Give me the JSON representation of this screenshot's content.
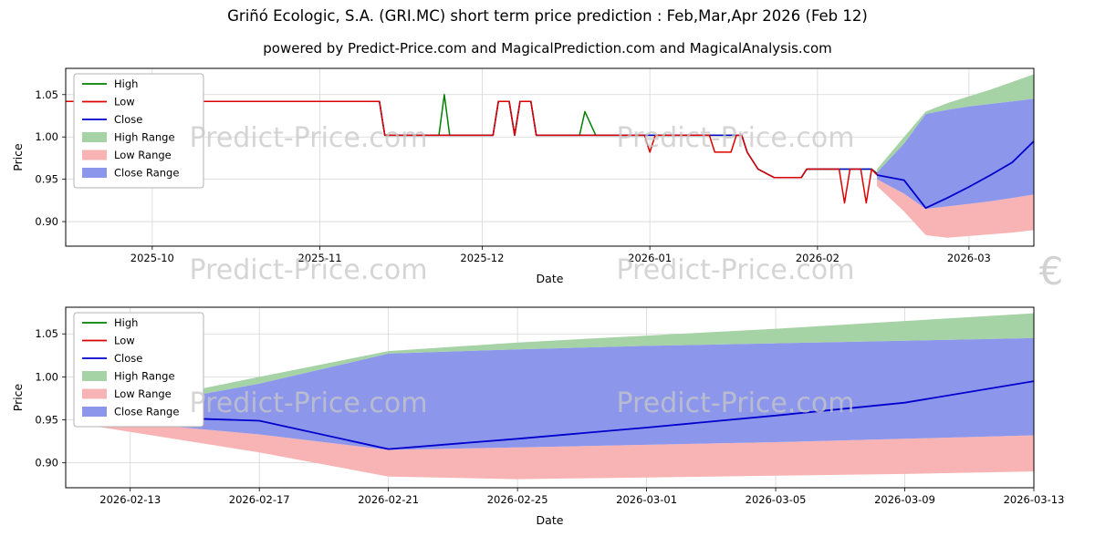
{
  "title": "Griñó Ecologic, S.A. (GRI.MC) short term price prediction : Feb,Mar,Apr 2026 (Feb 12)",
  "subtitle": "powered by Predict-Price.com and MagicalPrediction.com and MagicalAnalysis.com",
  "watermark": {
    "text": "Predict-Price.com",
    "currency_symbol": "€"
  },
  "chart_data": {
    "type": "line",
    "colors": {
      "high": "#008000",
      "low": "#dd0000",
      "close": "#0000cd",
      "high_range": "#a6d3a6",
      "low_range": "#f8b4b4",
      "close_range": "#8c96eb",
      "grid": "#d6d6d6",
      "watermark": "#c8c8c8"
    },
    "legend": [
      {
        "label": "High",
        "swatch": "line",
        "color": "high"
      },
      {
        "label": "Low",
        "swatch": "line",
        "color": "low"
      },
      {
        "label": "Close",
        "swatch": "line",
        "color": "close"
      },
      {
        "label": "High Range",
        "swatch": "patch",
        "color": "high_range"
      },
      {
        "label": "Low Range",
        "swatch": "patch",
        "color": "low_range"
      },
      {
        "label": "Close Range",
        "swatch": "patch",
        "color": "close_range"
      }
    ],
    "history": {
      "dates": [
        "2025-09-15",
        "2025-11-12",
        "2025-11-13",
        "2025-11-23",
        "2025-11-24",
        "2025-11-25",
        "2025-12-03",
        "2025-12-04",
        "2025-12-06",
        "2025-12-07",
        "2025-12-08",
        "2025-12-10",
        "2025-12-11",
        "2025-12-19",
        "2025-12-20",
        "2025-12-22",
        "2025-12-31",
        "2026-01-01",
        "2026-01-02",
        "2026-01-12",
        "2026-01-13",
        "2026-01-16",
        "2026-01-17",
        "2026-01-18",
        "2026-01-19",
        "2026-01-21",
        "2026-01-24",
        "2026-01-29",
        "2026-01-30",
        "2026-02-05",
        "2026-02-06",
        "2026-02-07",
        "2026-02-09",
        "2026-02-10",
        "2026-02-11",
        "2026-02-12"
      ],
      "high": [
        1.042,
        1.042,
        1.002,
        1.002,
        1.05,
        1.002,
        1.002,
        1.042,
        1.042,
        1.002,
        1.042,
        1.042,
        1.002,
        1.002,
        1.03,
        1.002,
        1.002,
        1.002,
        1.002,
        1.002,
        1.002,
        1.002,
        1.002,
        1.002,
        0.982,
        0.962,
        0.952,
        0.952,
        0.962,
        0.962,
        0.962,
        0.962,
        0.962,
        0.962,
        0.962,
        0.957
      ],
      "low": [
        1.042,
        1.042,
        1.002,
        1.002,
        1.002,
        1.002,
        1.002,
        1.042,
        1.042,
        1.002,
        1.042,
        1.042,
        1.002,
        1.002,
        1.002,
        1.002,
        1.002,
        0.982,
        1.002,
        1.002,
        0.982,
        0.982,
        1.002,
        1.002,
        0.982,
        0.962,
        0.952,
        0.952,
        0.962,
        0.962,
        0.922,
        0.962,
        0.962,
        0.922,
        0.962,
        0.955
      ],
      "close": [
        1.042,
        1.042,
        1.002,
        1.002,
        1.002,
        1.002,
        1.002,
        1.042,
        1.042,
        1.002,
        1.042,
        1.042,
        1.002,
        1.002,
        1.002,
        1.002,
        1.002,
        1.002,
        1.002,
        1.002,
        1.002,
        1.002,
        1.002,
        1.002,
        0.982,
        0.962,
        0.952,
        0.952,
        0.962,
        0.962,
        0.962,
        0.962,
        0.962,
        0.962,
        0.962,
        0.956
      ]
    },
    "prediction": {
      "dates": [
        "2026-02-12",
        "2026-02-17",
        "2026-02-21",
        "2026-02-25",
        "2026-03-01",
        "2026-03-05",
        "2026-03-09",
        "2026-03-13"
      ],
      "close": [
        0.955,
        0.949,
        0.916,
        0.928,
        0.941,
        0.955,
        0.97,
        0.995
      ],
      "close_upper": [
        0.958,
        0.992,
        1.027,
        1.032,
        1.036,
        1.039,
        1.042,
        1.045
      ],
      "close_lower": [
        0.95,
        0.933,
        0.915,
        0.918,
        0.921,
        0.924,
        0.928,
        0.932
      ],
      "high_upper": [
        0.962,
        1.0,
        1.03,
        1.04,
        1.048,
        1.056,
        1.065,
        1.074
      ],
      "low_lower": [
        0.942,
        0.912,
        0.884,
        0.881,
        0.883,
        0.885,
        0.887,
        0.89
      ]
    },
    "charts": [
      {
        "id": "overview",
        "xlabel": "Date",
        "ylabel": "Price",
        "show_history": true,
        "xlim": [
          "2025-09-15",
          "2026-03-13"
        ],
        "ylim": [
          0.871,
          1.081
        ],
        "yticks": [
          {
            "v": 0.9,
            "label": "0.90"
          },
          {
            "v": 0.95,
            "label": "0.95"
          },
          {
            "v": 1.0,
            "label": "1.00"
          },
          {
            "v": 1.05,
            "label": "1.05"
          }
        ],
        "xticks": [
          {
            "v": "2025-10-01",
            "label": "2025-10"
          },
          {
            "v": "2025-11-01",
            "label": "2025-11"
          },
          {
            "v": "2025-12-01",
            "label": "2025-12"
          },
          {
            "v": "2026-01-01",
            "label": "2026-01"
          },
          {
            "v": "2026-02-01",
            "label": "2026-02"
          },
          {
            "v": "2026-03-01",
            "label": "2026-03"
          }
        ]
      },
      {
        "id": "prediction-detail",
        "xlabel": "Date",
        "ylabel": "Price",
        "show_history": false,
        "xlim": [
          "2026-02-11",
          "2026-03-13"
        ],
        "ylim": [
          0.871,
          1.081
        ],
        "yticks": [
          {
            "v": 0.9,
            "label": "0.90"
          },
          {
            "v": 0.95,
            "label": "0.95"
          },
          {
            "v": 1.0,
            "label": "1.00"
          },
          {
            "v": 1.05,
            "label": "1.05"
          }
        ],
        "xticks": [
          {
            "v": "2026-02-13",
            "label": "2026-02-13"
          },
          {
            "v": "2026-02-17",
            "label": "2026-02-17"
          },
          {
            "v": "2026-02-21",
            "label": "2026-02-21"
          },
          {
            "v": "2026-02-25",
            "label": "2026-02-25"
          },
          {
            "v": "2026-03-01",
            "label": "2026-03-01"
          },
          {
            "v": "2026-03-05",
            "label": "2026-03-05"
          },
          {
            "v": "2026-03-09",
            "label": "2026-03-09"
          },
          {
            "v": "2026-03-13",
            "label": "2026-03-13"
          }
        ]
      }
    ]
  }
}
